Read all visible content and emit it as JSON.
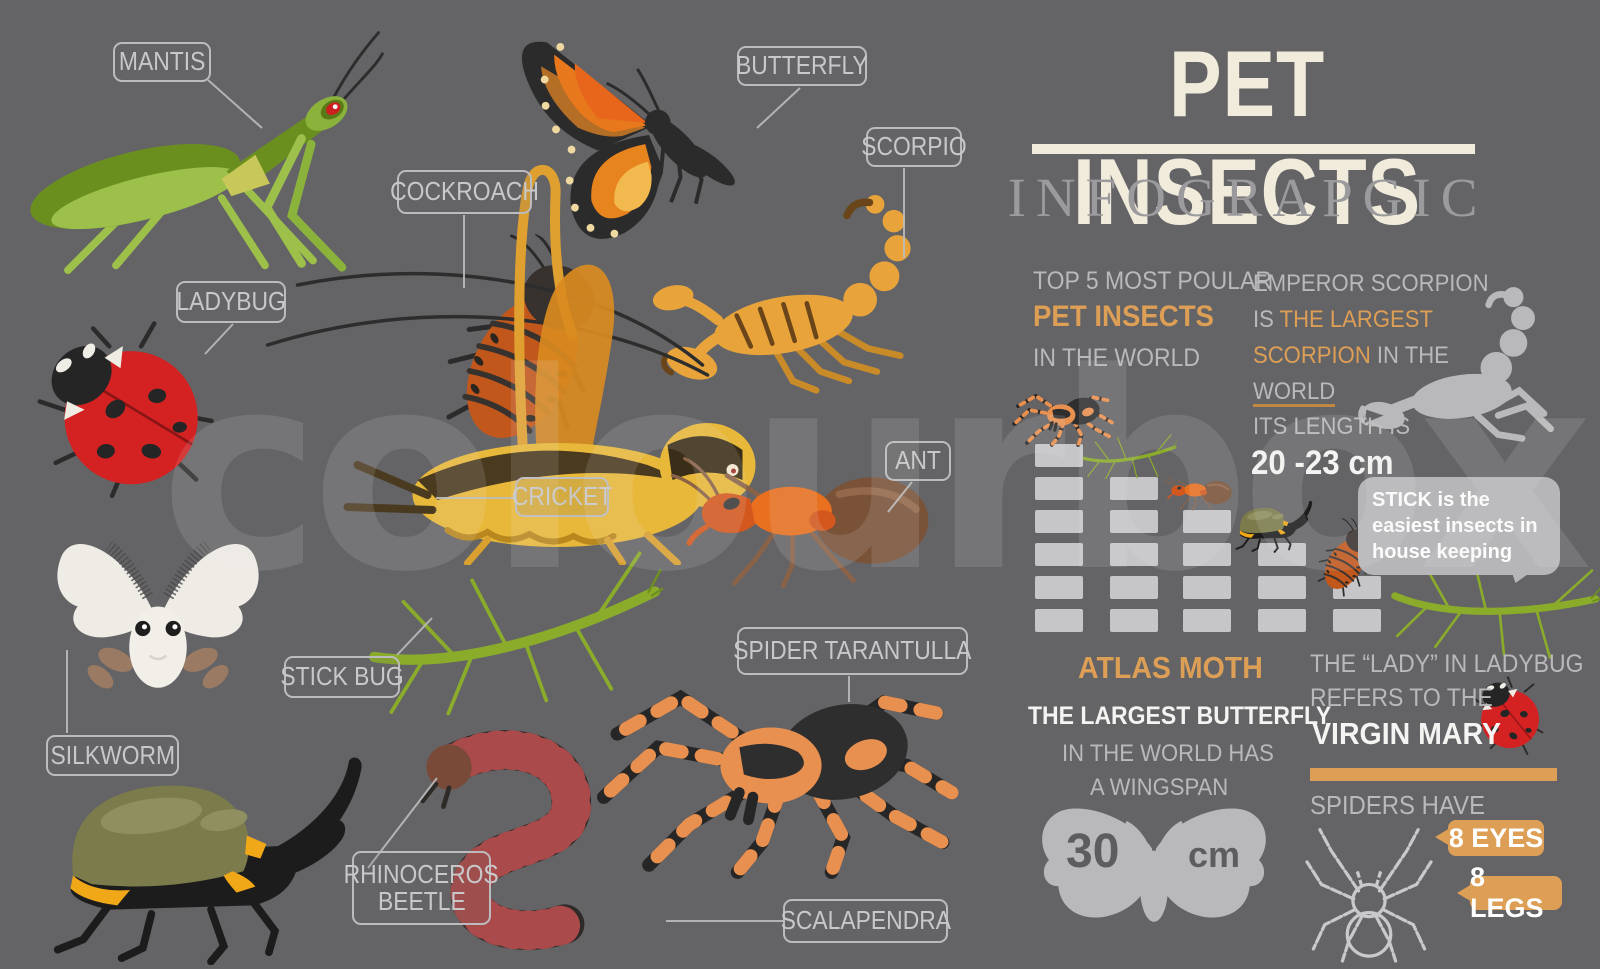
{
  "watermark": "colourbox",
  "header": {
    "title": "PET INSECTS",
    "subtitle": "INFOGRAPGIC"
  },
  "specimen_labels": {
    "mantis": "MANTIS",
    "butterfly": "BUTTERFLY",
    "cockroach": "COCKROACH",
    "scorpio": "SCORPIO",
    "ladybug": "LADYBUG",
    "cricket": "CRICKET",
    "ant": "ANT",
    "stick_bug": "STICK BUG",
    "spider_tarantulla": "SPIDER TARANTULLA",
    "silkworm": "SILKWORM",
    "rhinoceros_line1": "RHINOCEROS",
    "rhinoceros_line2": "BEETLE",
    "scalapendra": "SCALAPENDRA"
  },
  "facts": {
    "top5": {
      "line1": "TOP 5 MOST POULAR",
      "line2": "PET INSECTS",
      "line3": "IN THE WORLD"
    },
    "emperor": {
      "line1": "EMPEROR SCORPION",
      "line2_gray": "IS ",
      "line2_orange": "THE LARGEST",
      "line3_orange": "SCORPION",
      "line3_gray": " IN THE",
      "line4": "WORLD",
      "line5": "ITS LENGTH IS",
      "line6": "20 -23 cm"
    },
    "stick_bubble": {
      "text": "STICK is the easiest insects in house keeping"
    },
    "atlas": {
      "heading": "ATLAS MOTH",
      "line1": "THE LARGEST BUTTERFLY",
      "line2": "IN THE WORLD HAS",
      "line3": "A WINGSPAN",
      "wingspan_value": "30",
      "wingspan_unit": "cm"
    },
    "lady": {
      "line1": "THE “LADY”  IN LADYBUG",
      "line2": "REFERS TO THE",
      "line3": "VIRGIN MARY"
    },
    "spiders": {
      "heading": "SPIDERS HAVE",
      "badge_eyes": "8 EYES",
      "badge_legs": "8 LEGS"
    }
  },
  "chart_data": {
    "type": "bar",
    "title": "Top 5 most popular pet insects (pictogram ranking, rank 1 = tallest stack)",
    "categories": [
      "spider tarantula",
      "stick bug",
      "ant",
      "rhinoceros beetle",
      "cockroach"
    ],
    "values": [
      6,
      5,
      4,
      3,
      2
    ],
    "value_meaning": "stacked blocks per species; taller stack = more popular",
    "xlabel": "",
    "ylabel": "",
    "ylim": [
      0,
      6
    ],
    "grid": false,
    "legend_position": "none"
  },
  "colors": {
    "background": "#646467",
    "cream": "#f1ebdc",
    "accent_orange": "#dd9e55",
    "rule_orange": "#c08840",
    "light_gray_text": "#b9b9bb",
    "white_text": "#f4f4f2",
    "bar_segment": "#d4d4d6",
    "label_border": "#bcbcbe",
    "silhouette_gray": "#b9b9bb"
  }
}
